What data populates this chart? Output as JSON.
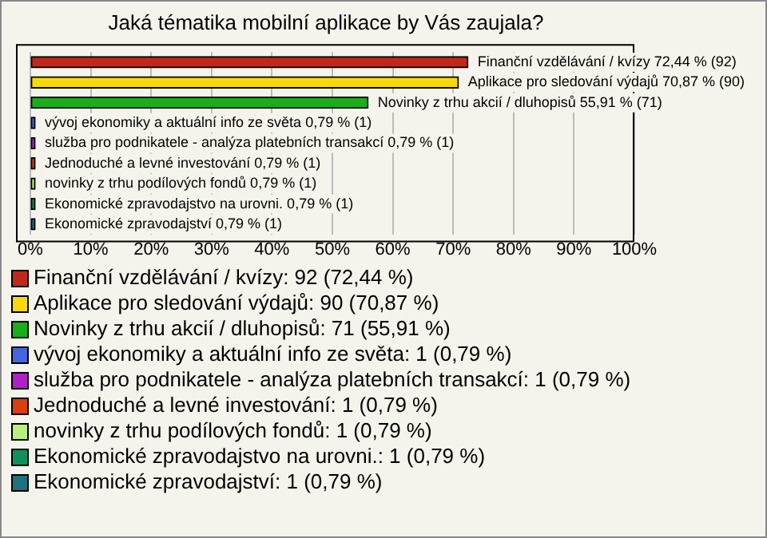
{
  "chart_data": {
    "type": "bar",
    "orientation": "horizontal",
    "stacked": true,
    "title": "Jaká tématika mobilní aplikace by Vás zaujala?",
    "categories": [
      "Finanční vzdělávání / kvízy",
      "Aplikace pro sledování výdajů",
      "Novinky z trhu akcií / dluhopisů",
      "vývoj ekonomiky a aktuální info ze světa",
      "služba pro podnikatele - analýza platebních transakcí",
      "Jednoduché a levné investování",
      "novinky z trhu podílových fondů",
      "Ekonomické zpravodajstvo na urovni.",
      "Ekonomické zpravodajství"
    ],
    "series": [
      {
        "name": "Finanční vzdělávání / kvízy: 92 (72,44 %)",
        "color": "#c0281c",
        "values": [
          72.44,
          null,
          null,
          null,
          null,
          null,
          null,
          null,
          null
        ]
      },
      {
        "name": "Aplikace pro sledování výdajů: 90 (70,87 %)",
        "color": "#f5d90a",
        "values": [
          null,
          70.87,
          null,
          null,
          null,
          null,
          null,
          null,
          null
        ]
      },
      {
        "name": "Novinky z trhu akcií / dluhopisů: 71 (55,91 %)",
        "color": "#1aae1a",
        "values": [
          null,
          null,
          55.91,
          null,
          null,
          null,
          null,
          null,
          null
        ]
      },
      {
        "name": "vývoj ekonomiky a aktuální info ze světa: 1 (0,79 %)",
        "color": "#4466dd",
        "values": [
          null,
          null,
          null,
          0.79,
          null,
          null,
          null,
          null,
          null
        ]
      },
      {
        "name": "služba pro podnikatele - analýza platebních transakcí: 1 (0,79 %)",
        "color": "#b020c8",
        "values": [
          null,
          null,
          null,
          null,
          0.79,
          null,
          null,
          null,
          null
        ]
      },
      {
        "name": "Jednoduché a levné investování: 1 (0,79 %)",
        "color": "#d84010",
        "values": [
          null,
          null,
          null,
          null,
          null,
          0.79,
          null,
          null,
          null
        ]
      },
      {
        "name": "novinky z trhu podílových fondů: 1 (0,79 %)",
        "color": "#b8f080",
        "values": [
          null,
          null,
          null,
          null,
          null,
          null,
          0.79,
          null,
          null
        ]
      },
      {
        "name": "Ekonomické zpravodajstvo na urovni.: 1 (0,79 %)",
        "color": "#10905a",
        "values": [
          null,
          null,
          null,
          null,
          null,
          null,
          null,
          0.79,
          null
        ]
      },
      {
        "name": "Ekonomické zpravodajství: 1 (0,79 %)",
        "color": "#207080",
        "values": [
          null,
          null,
          null,
          null,
          null,
          null,
          null,
          null,
          0.79
        ]
      }
    ],
    "value_labels": [
      "72,44 % (92)",
      "70,87 % (90)",
      "55,91 % (71)",
      "0,79 % (1)",
      "0,79 % (1)",
      "0,79 % (1)",
      "0,79 % (1)",
      "0,79 % (1)",
      "0,79 % (1)"
    ],
    "xlim": [
      0,
      100
    ],
    "xticks": [
      {
        "value": 0,
        "label": "0%"
      },
      {
        "value": 10,
        "label": "10%"
      },
      {
        "value": 20,
        "label": "20%"
      },
      {
        "value": 30,
        "label": "30%"
      },
      {
        "value": 40,
        "label": "40%"
      },
      {
        "value": 50,
        "label": "50%"
      },
      {
        "value": 60,
        "label": "60%"
      },
      {
        "value": 70,
        "label": "70%"
      },
      {
        "value": 80,
        "label": "80%"
      },
      {
        "value": 90,
        "label": "90%"
      },
      {
        "value": 100,
        "label": "100%"
      }
    ],
    "grid": "x",
    "legend": "bottom",
    "tick_labels": "x"
  }
}
